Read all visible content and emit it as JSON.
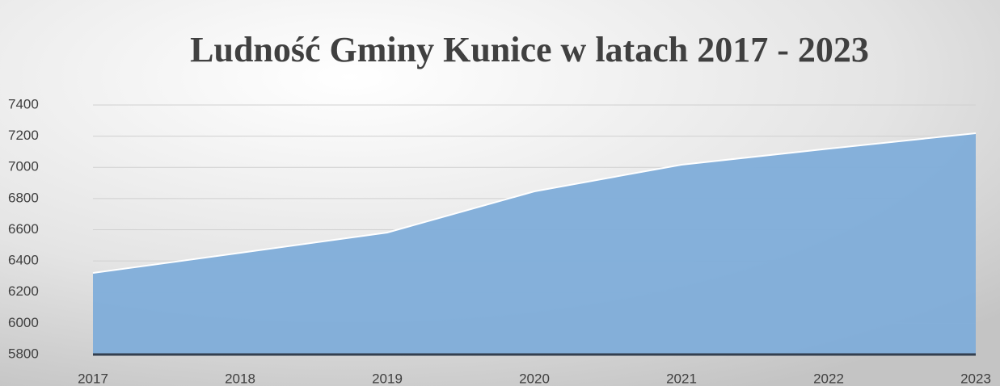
{
  "chart_data": {
    "type": "area",
    "title": "Ludność Gminy Kunice w latach 2017 - 2023",
    "categories": [
      "2017",
      "2018",
      "2019",
      "2020",
      "2021",
      "2022",
      "2023"
    ],
    "values": [
      6323,
      6452,
      6582,
      6846,
      7017,
      7120,
      7219
    ],
    "color": "#7fadd9",
    "ylim": [
      5800,
      7400
    ],
    "yticks": [
      5800,
      6000,
      6200,
      6400,
      6600,
      6800,
      7000,
      7200,
      7400
    ],
    "grid": true
  }
}
